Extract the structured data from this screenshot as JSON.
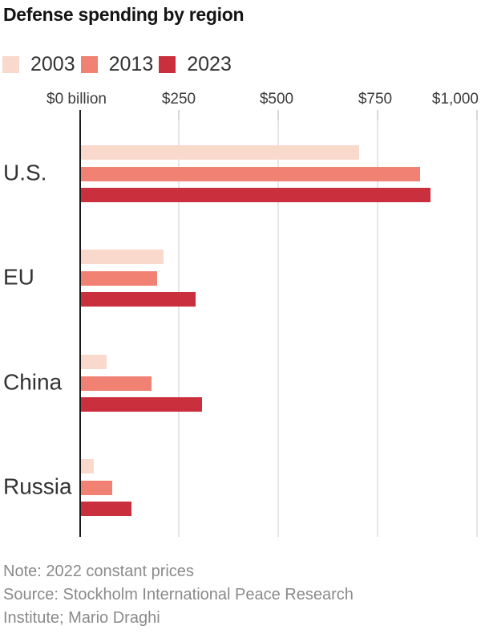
{
  "title": "Defense spending by region",
  "legend": [
    {
      "label": "2003",
      "color": "#fad9cd"
    },
    {
      "label": "2013",
      "color": "#f08173"
    },
    {
      "label": "2023",
      "color": "#ca2f3d"
    }
  ],
  "axis": {
    "tick_labels": [
      "$0 billion",
      "$250",
      "$500",
      "$750",
      "$1,000"
    ]
  },
  "chart_data": {
    "type": "bar",
    "orientation": "horizontal",
    "title": "Defense spending by region",
    "unit": "US$ billion, 2022 constant prices",
    "categories": [
      "U.S.",
      "EU",
      "China",
      "Russia"
    ],
    "series": [
      {
        "name": "2003",
        "color": "#fad9cd",
        "values": [
          700,
          207,
          65,
          33
        ]
      },
      {
        "name": "2013",
        "color": "#f08173",
        "values": [
          855,
          191,
          178,
          78
        ]
      },
      {
        "name": "2023",
        "color": "#ca2f3d",
        "values": [
          880,
          289,
          305,
          128
        ]
      }
    ],
    "xlim": [
      0,
      1000
    ],
    "xticks": [
      0,
      250,
      500,
      750,
      1000
    ],
    "grid": true,
    "legend_position": "top"
  },
  "footer": {
    "note": "Note: 2022 constant prices",
    "source_lines": [
      "Source: Stockholm International Peace Research",
      "Institute; Mario Draghi"
    ]
  }
}
